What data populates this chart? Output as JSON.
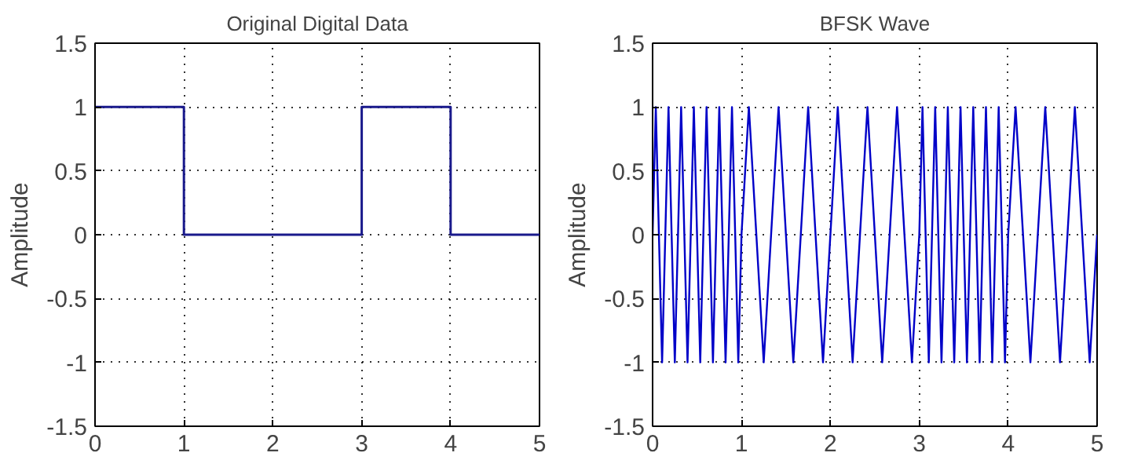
{
  "chart_data": [
    {
      "type": "step",
      "title": "Original Digital Data",
      "ylabel": "Amplitude",
      "x": [
        0,
        1,
        2,
        3,
        4,
        5
      ],
      "series": [
        {
          "color": "#1a1a8c",
          "values": [
            1,
            0,
            0,
            1,
            0,
            0
          ]
        }
      ],
      "xlim": [
        0,
        5
      ],
      "xticks": [
        0,
        1,
        2,
        3,
        4,
        5
      ],
      "ylim": [
        -1.5,
        1.5
      ],
      "yticks": [
        -1.5,
        -1,
        -0.5,
        0,
        0.5,
        1,
        1.5
      ],
      "grid": true
    },
    {
      "type": "line",
      "title": "BFSK Wave",
      "ylabel": "Amplitude",
      "x": [
        0,
        0.036,
        0.071,
        0.107,
        0.143,
        0.179,
        0.214,
        0.25,
        0.286,
        0.321,
        0.357,
        0.393,
        0.429,
        0.464,
        0.5,
        0.536,
        0.571,
        0.607,
        0.643,
        0.679,
        0.714,
        0.75,
        0.786,
        0.821,
        0.857,
        0.893,
        0.929,
        0.964,
        1,
        1.083,
        1.167,
        1.25,
        1.333,
        1.417,
        1.5,
        1.583,
        1.667,
        1.75,
        1.833,
        1.917,
        2,
        2.083,
        2.167,
        2.25,
        2.333,
        2.417,
        2.5,
        2.583,
        2.667,
        2.75,
        2.833,
        2.917,
        3,
        3.036,
        3.071,
        3.107,
        3.143,
        3.179,
        3.214,
        3.25,
        3.286,
        3.321,
        3.357,
        3.393,
        3.429,
        3.464,
        3.5,
        3.536,
        3.571,
        3.607,
        3.643,
        3.679,
        3.714,
        3.75,
        3.786,
        3.821,
        3.857,
        3.893,
        3.929,
        3.964,
        4,
        4.083,
        4.167,
        4.25,
        4.333,
        4.417,
        4.5,
        4.583,
        4.667,
        4.75,
        4.833,
        4.917,
        5
      ],
      "series": [
        {
          "color": "#0000c8",
          "values": [
            0,
            1,
            0,
            -1,
            0,
            1,
            0,
            -1,
            0,
            1,
            0,
            -1,
            0,
            1,
            0,
            -1,
            0,
            1,
            0,
            -1,
            0,
            1,
            0,
            -1,
            0,
            1,
            0,
            -1,
            0,
            1,
            0,
            -1,
            0,
            1,
            0,
            -1,
            0,
            1,
            0,
            -1,
            0,
            1,
            0,
            -1,
            0,
            1,
            0,
            -1,
            0,
            1,
            0,
            -1,
            0,
            1,
            0,
            -1,
            0,
            1,
            0,
            -1,
            0,
            1,
            0,
            -1,
            0,
            1,
            0,
            -1,
            0,
            1,
            0,
            -1,
            0,
            1,
            0,
            -1,
            0,
            1,
            0,
            -1,
            0,
            1,
            0,
            -1,
            0,
            1,
            0,
            -1,
            0,
            1,
            0,
            -1,
            0
          ]
        }
      ],
      "xlim": [
        0,
        5
      ],
      "xticks": [
        0,
        1,
        2,
        3,
        4,
        5
      ],
      "ylim": [
        -1.5,
        1.5
      ],
      "yticks": [
        -1.5,
        -1,
        -0.5,
        0,
        0.5,
        1,
        1.5
      ],
      "grid": true
    }
  ]
}
